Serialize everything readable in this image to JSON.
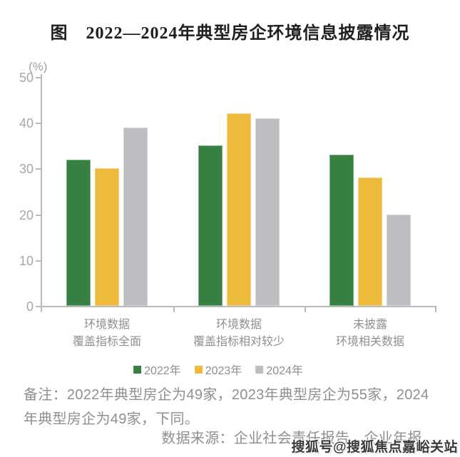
{
  "title": "图　2022—2024年典型房企环境信息披露情况",
  "chart_data": {
    "type": "bar",
    "title": "图　2022—2024年典型房企环境信息披露情况",
    "unit_label": "(%)",
    "categories": [
      [
        "环境数据",
        "覆盖指标全面"
      ],
      [
        "环境数据",
        "覆盖指标相对较少"
      ],
      [
        "未披露",
        "环境相关数据"
      ]
    ],
    "series": [
      {
        "name": "2022年",
        "color": "#368142",
        "values": [
          32,
          35,
          33
        ]
      },
      {
        "name": "2023年",
        "color": "#eeba3b",
        "values": [
          30,
          42,
          28
        ]
      },
      {
        "name": "2024年",
        "color": "#bdbec2",
        "values": [
          39,
          41,
          20
        ]
      }
    ],
    "ylim": [
      0,
      50
    ],
    "ytick_interval": 10,
    "yticks": [
      0,
      10,
      20,
      30,
      40,
      50
    ],
    "grid": false,
    "legend_position": "bottom"
  },
  "note": {
    "full_text": "备注：2022年典型房企为49家，2023年典型房企为55家，2024年典型房企为49家，下同。",
    "lines": [
      "备注：2022年典型房企为49家，2023年典型房企为55家，2024",
      "年典型房企为49家，下同。"
    ]
  },
  "source": "数据来源：企业社会责任报告、企业年报。",
  "watermark": "搜狐号@搜狐焦点嘉峪关站",
  "colors": {
    "bar_2022": "#368142",
    "bar_2023": "#eeba3b",
    "bar_2024": "#bdbec2",
    "axis": "#b8babc",
    "tick_text": "#a6a8aa",
    "label_text": "#8d8f91",
    "title_text": "#1f1f1f"
  }
}
